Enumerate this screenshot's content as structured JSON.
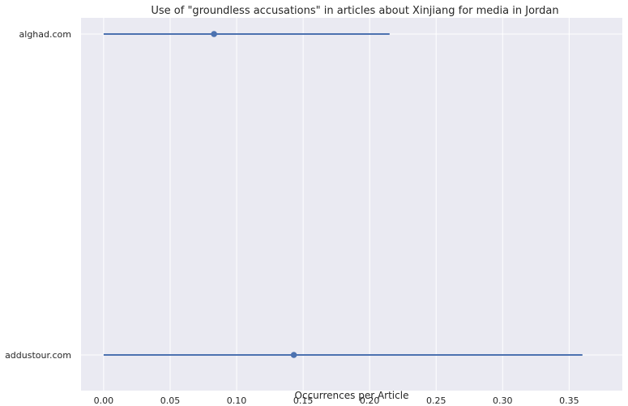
{
  "chart_data": {
    "type": "scatter",
    "title": "Use of \"groundless accusations\" in articles about Xinjiang for media in Jordan",
    "xlabel": "Occurrences per Article",
    "ylabel": "",
    "xlim": [
      -0.017,
      0.39
    ],
    "categories": [
      "alghad.com",
      "addustour.com"
    ],
    "points": [
      {
        "category": "alghad.com",
        "value": 0.083,
        "ci": [
          0.0,
          0.215
        ]
      },
      {
        "category": "addustour.com",
        "value": 0.143,
        "ci": [
          0.0,
          0.36
        ]
      }
    ],
    "xticks": [
      0.0,
      0.05,
      0.1,
      0.15,
      0.2,
      0.25,
      0.3,
      0.35
    ],
    "xtick_labels": [
      "0.00",
      "0.05",
      "0.10",
      "0.15",
      "0.20",
      "0.25",
      "0.30",
      "0.35"
    ],
    "grid": true,
    "colors": {
      "background": "#eaeaf2",
      "grid": "#ffffff",
      "series": "#4c72b0"
    }
  }
}
